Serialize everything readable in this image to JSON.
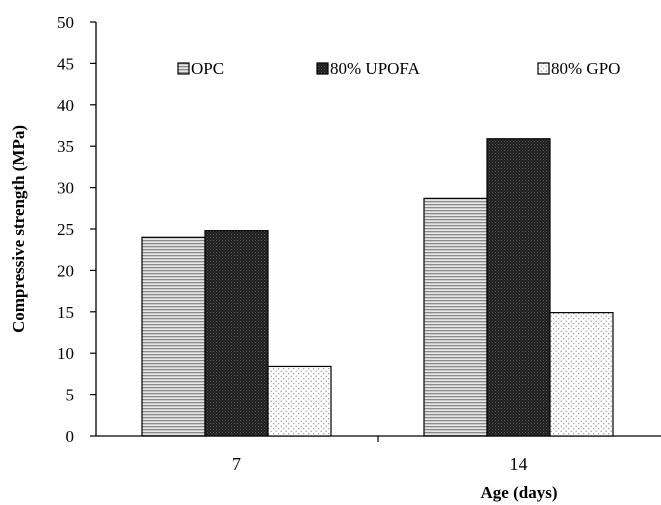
{
  "chart_data": {
    "type": "bar",
    "title": "",
    "xlabel": "Age (days)",
    "ylabel": "Compressive strength (MPa)",
    "categories": [
      "7",
      "14"
    ],
    "ylim": [
      0,
      50
    ],
    "yticks": [
      0,
      5,
      10,
      15,
      20,
      25,
      30,
      35,
      40,
      45,
      50
    ],
    "grid": false,
    "legend_position": "top",
    "series": [
      {
        "name": "OPC",
        "values": [
          24,
          28.7
        ],
        "pattern": "horizontal-stripes",
        "color": "#b0b0b0"
      },
      {
        "name": "80% UPOFA",
        "values": [
          24.8,
          35.9
        ],
        "pattern": "dense-dark",
        "color": "#2a2a2a"
      },
      {
        "name": "80% GPO",
        "values": [
          8.4,
          14.9
        ],
        "pattern": "dots",
        "color": "#ffffff"
      }
    ]
  }
}
